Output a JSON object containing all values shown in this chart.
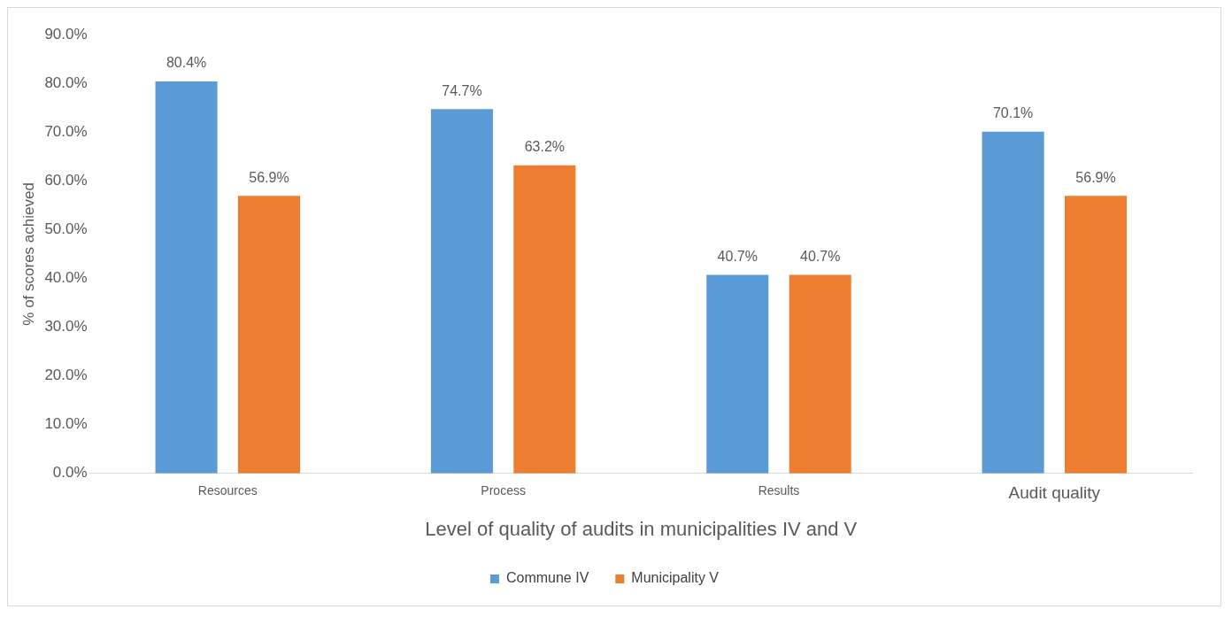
{
  "chart_data": {
    "type": "bar",
    "xlabel": "Level of quality of audits in municipalities IV and V",
    "ylabel": "% of scores achieved",
    "categories": [
      "Resources",
      "Process",
      "Results",
      "Audit quality"
    ],
    "series": [
      {
        "name": "Commune IV",
        "color": "#5b9bd5",
        "values": [
          80.4,
          74.7,
          40.7,
          70.1
        ],
        "value_labels": [
          "80.4%",
          "74.7%",
          "40.7%",
          "70.1%"
        ]
      },
      {
        "name": "Municipality V",
        "color": "#ed7d31",
        "values": [
          56.9,
          63.2,
          40.7,
          56.9
        ],
        "value_labels": [
          "56.9%",
          "63.2%",
          "40.7%",
          "56.9%"
        ]
      }
    ],
    "ylim": [
      0,
      90
    ],
    "yticks": [
      {
        "value": 0,
        "label": "0.0%"
      },
      {
        "value": 10,
        "label": "10.0%"
      },
      {
        "value": 20,
        "label": "20.0%"
      },
      {
        "value": 30,
        "label": "30.0%"
      },
      {
        "value": 40,
        "label": "40.0%"
      },
      {
        "value": 50,
        "label": "50.0%"
      },
      {
        "value": 60,
        "label": "60.0%"
      },
      {
        "value": 70,
        "label": "70.0%"
      },
      {
        "value": 80,
        "label": "80.0%"
      },
      {
        "value": 90,
        "label": "90.0%"
      }
    ],
    "grid": false,
    "legend": "bottom"
  }
}
